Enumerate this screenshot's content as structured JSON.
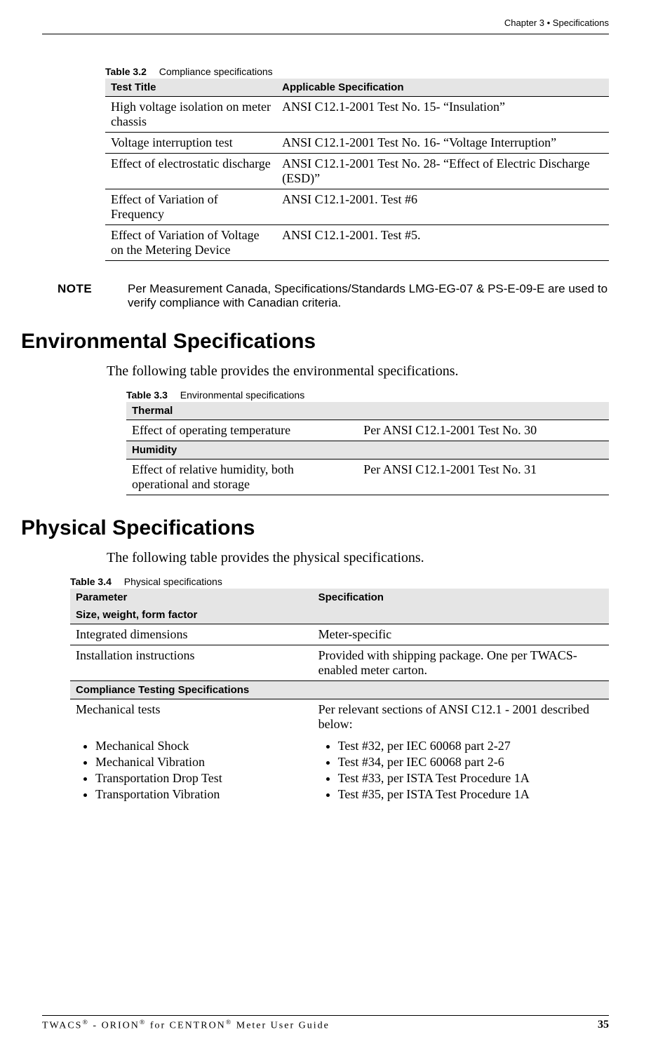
{
  "header": {
    "chapter": "Chapter 3 • Specifications"
  },
  "table32": {
    "caption_num": "Table 3.2",
    "caption_title": "Compliance specifications",
    "head_col1": "Test Title",
    "head_col2": "Applicable Specification",
    "rows": [
      {
        "c1": "High voltage isolation on meter chassis",
        "c2": "ANSI C12.1-2001 Test No. 15- “Insulation”"
      },
      {
        "c1": "Voltage interruption test",
        "c2": "ANSI C12.1-2001 Test No. 16- “Voltage Interruption”"
      },
      {
        "c1": "Effect of electrostatic discharge",
        "c2": "ANSI C12.1-2001 Test No. 28- “Effect of Electric Discharge (ESD)”"
      },
      {
        "c1": "Effect of Variation of Frequency",
        "c2": "ANSI C12.1-2001. Test #6"
      },
      {
        "c1": "Effect of Variation of Voltage on the Metering Device",
        "c2": "ANSI C12.1-2001. Test #5."
      }
    ]
  },
  "note": {
    "label": "NOTE",
    "text": "Per Measurement Canada, Specifications/Standards LMG-EG-07 & PS-E-09-E are used to verify compliance with Canadian criteria."
  },
  "section1": {
    "heading": "Environmental Specifications",
    "intro": "The following table provides the environmental specifications."
  },
  "table33": {
    "caption_num": "Table 3.3",
    "caption_title": "Environmental specifications",
    "sec1": "Thermal",
    "r1c1": "Effect of operating temperature",
    "r1c2": "Per ANSI C12.1-2001 Test No. 30",
    "sec2": "Humidity",
    "r2c1": "Effect of relative humidity, both operational and storage",
    "r2c2": "Per ANSI C12.1-2001 Test No. 31"
  },
  "section2": {
    "heading": "Physical Specifications",
    "intro": "The following table provides the physical specifications."
  },
  "table34": {
    "caption_num": "Table 3.4",
    "caption_title": "Physical specifications",
    "head_col1": "Parameter",
    "head_col2": "Specification",
    "sec1": "Size, weight, form factor",
    "r1c1": "Integrated dimensions",
    "r1c2": "Meter-specific",
    "r2c1": "Installation instructions",
    "r2c2": "Provided with shipping package.  One per TWACS-enabled meter carton.",
    "sec2": "Compliance Testing Specifications",
    "r3c1": "Mechanical tests",
    "r3c2": "Per relevant sections of ANSI C12.1 - 2001 described below:",
    "mech_left": [
      "Mechanical Shock",
      "Mechanical Vibration",
      "Transportation Drop Test",
      "Transportation Vibration"
    ],
    "mech_right": [
      "Test #32, per IEC 60068 part 2-27",
      "Test #34, per IEC 60068 part 2-6",
      "Test #33, per ISTA Test Procedure 1A",
      "Test #35, per ISTA Test Procedure 1A"
    ]
  },
  "footer": {
    "left_plain": "TWACS® - ORION® for CENTRON® Meter User Guide",
    "pagenum": "35"
  },
  "colors": {
    "header_bg": "#e5e5e5",
    "border": "#000000",
    "text": "#000000",
    "page_bg": "#ffffff"
  }
}
